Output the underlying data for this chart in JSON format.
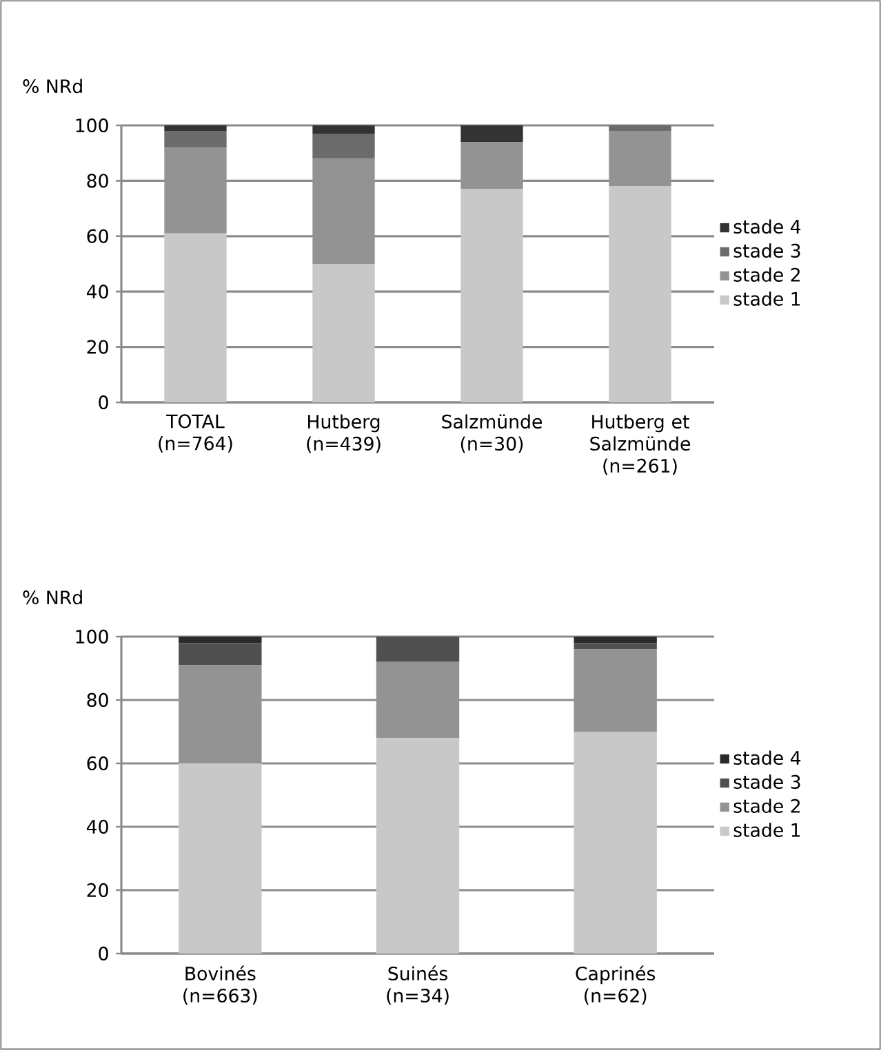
{
  "chart_data": [
    {
      "type": "bar",
      "stacked": true,
      "ylabel": "% NRd",
      "categories": [
        "TOTAL (n=764)",
        "Hutberg (n=439)",
        "Salzmünde (n=30)",
        "Hutberg et Salzmünde (n=261)"
      ],
      "ylim": [
        0,
        100
      ],
      "yticks": [
        0,
        20,
        40,
        60,
        80,
        100
      ],
      "grid": "y",
      "legend": "right",
      "series": [
        {
          "name": "stade 1",
          "color": "#c8c8c8",
          "values": [
            61,
            50,
            77,
            78
          ]
        },
        {
          "name": "stade 2",
          "color": "#939393",
          "values": [
            31,
            38,
            17,
            20
          ]
        },
        {
          "name": "stade 3",
          "color": "#6b6b6b",
          "values": [
            6,
            9,
            0,
            2
          ]
        },
        {
          "name": "stade 4",
          "color": "#333333",
          "values": [
            2,
            3,
            6,
            0
          ]
        }
      ]
    },
    {
      "type": "bar",
      "stacked": true,
      "ylabel": "% NRd",
      "categories": [
        "Bovinés (n=663)",
        "Suinés (n=34)",
        "Caprinés (n=62)"
      ],
      "ylim": [
        0,
        100
      ],
      "yticks": [
        0,
        20,
        40,
        60,
        80,
        100
      ],
      "grid": "y",
      "legend": "right",
      "series": [
        {
          "name": "stade 1",
          "color": "#c8c8c8",
          "values": [
            60,
            68,
            70
          ]
        },
        {
          "name": "stade 2",
          "color": "#939393",
          "values": [
            31,
            24,
            26
          ]
        },
        {
          "name": "stade 3",
          "color": "#505050",
          "values": [
            7,
            8,
            2
          ]
        },
        {
          "name": "stade 4",
          "color": "#2a2a2a",
          "values": [
            2,
            0,
            2
          ]
        }
      ]
    }
  ]
}
